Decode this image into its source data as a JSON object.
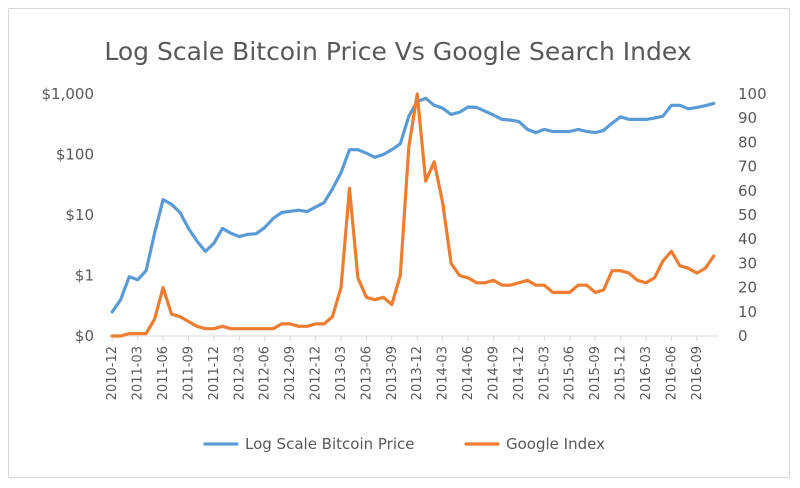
{
  "chart_data": {
    "type": "line",
    "title": "Log Scale Bitcoin Price Vs Google Search Index",
    "y_left": {
      "scale": "log",
      "range": [
        0.1,
        1000
      ],
      "tick_values": [
        0.1,
        1,
        10,
        100,
        1000
      ],
      "tick_labels": [
        "$0",
        "$1",
        "$10",
        "$100",
        "$1,000"
      ]
    },
    "y_right": {
      "scale": "linear",
      "range": [
        0,
        100
      ],
      "tick_values": [
        0,
        10,
        20,
        30,
        40,
        50,
        60,
        70,
        80,
        90,
        100
      ],
      "tick_labels": [
        "0",
        "10",
        "20",
        "30",
        "40",
        "50",
        "60",
        "70",
        "80",
        "90",
        "100"
      ]
    },
    "x_tick_labels": [
      "2010-12",
      "2011-03",
      "2011-06",
      "2011-09",
      "2011-12",
      "2012-03",
      "2012-06",
      "2012-09",
      "2012-12",
      "2013-03",
      "2013-06",
      "2013-09",
      "2013-12",
      "2014-03",
      "2014-06",
      "2014-09",
      "2014-12",
      "2015-03",
      "2015-06",
      "2015-09",
      "2015-12",
      "2016-03",
      "2016-06",
      "2016-09"
    ],
    "x": [
      "2010-12",
      "2011-01",
      "2011-02",
      "2011-03",
      "2011-04",
      "2011-05",
      "2011-06",
      "2011-07",
      "2011-08",
      "2011-09",
      "2011-10",
      "2011-11",
      "2011-12",
      "2012-01",
      "2012-02",
      "2012-03",
      "2012-04",
      "2012-05",
      "2012-06",
      "2012-07",
      "2012-08",
      "2012-09",
      "2012-10",
      "2012-11",
      "2012-12",
      "2013-01",
      "2013-02",
      "2013-03",
      "2013-04",
      "2013-05",
      "2013-06",
      "2013-07",
      "2013-08",
      "2013-09",
      "2013-10",
      "2013-11",
      "2013-12",
      "2014-01",
      "2014-02",
      "2014-03",
      "2014-04",
      "2014-05",
      "2014-06",
      "2014-07",
      "2014-08",
      "2014-09",
      "2014-10",
      "2014-11",
      "2014-12",
      "2015-01",
      "2015-02",
      "2015-03",
      "2015-04",
      "2015-05",
      "2015-06",
      "2015-07",
      "2015-08",
      "2015-09",
      "2015-10",
      "2015-11",
      "2015-12",
      "2016-01",
      "2016-02",
      "2016-03",
      "2016-04",
      "2016-05",
      "2016-06",
      "2016-07",
      "2016-08",
      "2016-09",
      "2016-10",
      "2016-11"
    ],
    "series": [
      {
        "name": "Log Scale Bitcoin Price",
        "axis": "left",
        "color": "#5b9bd5",
        "values": [
          0.25,
          0.4,
          0.95,
          0.85,
          1.2,
          5,
          18,
          15,
          11,
          6,
          3.7,
          2.5,
          3.4,
          6,
          5,
          4.4,
          4.8,
          4.9,
          6.2,
          8.8,
          11,
          11.5,
          12,
          11.4,
          13.5,
          16,
          27,
          50,
          120,
          120,
          105,
          90,
          100,
          120,
          150,
          430,
          750,
          850,
          650,
          580,
          460,
          500,
          610,
          600,
          520,
          450,
          380,
          370,
          350,
          260,
          230,
          260,
          240,
          240,
          240,
          260,
          240,
          230,
          250,
          330,
          420,
          380,
          380,
          380,
          400,
          430,
          650,
          650,
          570,
          600,
          640,
          700
        ]
      },
      {
        "name": "Google Index",
        "axis": "right",
        "color": "#ed7d31",
        "values": [
          0,
          0,
          1,
          1,
          1,
          7,
          20,
          9,
          8,
          6,
          4,
          3,
          3,
          4,
          3,
          3,
          3,
          3,
          3,
          3,
          5,
          5,
          4,
          4,
          5,
          5,
          8,
          20,
          61,
          24,
          16,
          15,
          16,
          13,
          25,
          78,
          100,
          64,
          72,
          55,
          30,
          25,
          24,
          22,
          22,
          23,
          21,
          21,
          22,
          23,
          21,
          21,
          18,
          18,
          18,
          21,
          21,
          18,
          19,
          27,
          27,
          26,
          23,
          22,
          24,
          31,
          35,
          29,
          28,
          26,
          28,
          33
        ]
      }
    ],
    "legend": {
      "position": "bottom"
    },
    "grid": false
  }
}
